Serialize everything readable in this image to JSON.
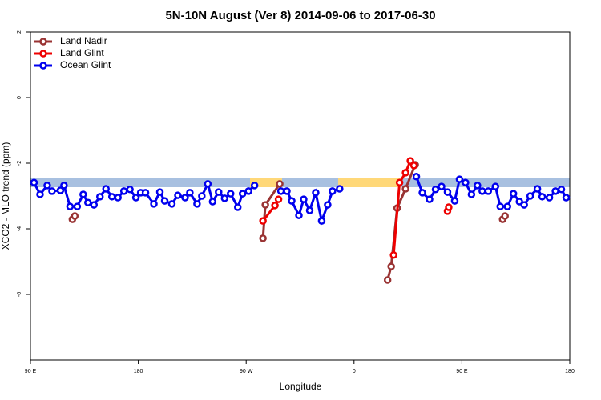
{
  "chart_data": {
    "type": "line",
    "title": "5N-10N August (Ver 8)   2014-09-06 to 2017-06-30",
    "x_label": "Longitude",
    "y_label": "XCO2 - MLO trend (ppm)",
    "xlim": [
      90,
      540
    ],
    "ylim": [
      -8,
      2
    ],
    "xticks": [
      {
        "value": 90,
        "label": "90 E"
      },
      180,
      {
        "value": 270,
        "label": "90 W"
      },
      {
        "value": 360,
        "label": "0"
      },
      {
        "value": 450,
        "label": "90 E"
      },
      {
        "value": 540,
        "label": "180"
      }
    ],
    "yticks": [
      -6,
      -4,
      -2,
      0,
      2
    ],
    "legend": "top-left",
    "series": [
      {
        "name": "Land Nadir",
        "color": "#993333",
        "x": [
          125,
          127,
          null,
          284,
          286,
          298,
          null,
          388,
          391,
          396,
          403,
          411,
          null,
          484,
          486
        ],
        "values": [
          -3.71,
          -3.61,
          null,
          -4.29,
          -3.27,
          -2.63,
          null,
          -5.56,
          -5.15,
          -3.37,
          -2.78,
          -2.05,
          null,
          -3.71,
          -3.61
        ]
      },
      {
        "name": "Land Glint",
        "color": "#ee0000",
        "x": [
          284,
          294,
          297,
          null,
          393,
          398,
          403,
          407,
          410,
          null,
          438,
          439
        ],
        "values": [
          -3.76,
          -3.29,
          -3.1,
          null,
          -4.8,
          -2.59,
          -2.29,
          -1.93,
          -2.07,
          null,
          -3.46,
          -3.34
        ]
      },
      {
        "name": "Ocean Glint",
        "color": "#0000ee",
        "x": [
          93,
          98,
          104,
          108,
          115,
          118,
          123,
          129,
          134,
          138,
          143,
          148,
          153,
          158,
          163,
          168,
          173,
          178,
          182,
          186,
          193,
          198,
          202,
          208,
          213,
          219,
          223,
          229,
          233,
          238,
          242,
          247,
          252,
          257,
          263,
          267,
          272,
          277,
          null,
          299,
          304,
          308,
          314,
          318,
          323,
          328,
          333,
          338,
          342,
          348,
          null,
          412,
          417,
          423,
          428,
          433,
          438,
          444,
          448,
          453,
          458,
          463,
          467,
          472,
          478,
          482,
          488,
          493,
          498,
          502,
          507,
          513,
          517,
          523,
          528,
          533,
          537
        ],
        "values": [
          -2.59,
          -2.95,
          -2.68,
          -2.85,
          -2.83,
          -2.68,
          -3.32,
          -3.32,
          -2.95,
          -3.2,
          -3.27,
          -3.02,
          -2.78,
          -3.02,
          -3.05,
          -2.85,
          -2.8,
          -3.05,
          -2.9,
          -2.9,
          -3.24,
          -2.88,
          -3.15,
          -3.24,
          -2.98,
          -3.05,
          -2.9,
          -3.24,
          -3.0,
          -2.63,
          -3.17,
          -2.88,
          -3.07,
          -2.93,
          -3.34,
          -2.93,
          -2.85,
          -2.68,
          null,
          -2.85,
          -2.85,
          -3.15,
          -3.59,
          -3.1,
          -3.44,
          -2.9,
          -3.76,
          -3.27,
          -2.85,
          -2.78,
          null,
          -2.41,
          -2.9,
          -3.1,
          -2.8,
          -2.71,
          -2.88,
          -3.15,
          -2.49,
          -2.59,
          -2.95,
          -2.68,
          -2.85,
          -2.85,
          -2.71,
          -3.32,
          -3.32,
          -2.93,
          -3.17,
          -3.27,
          -3.0,
          -2.78,
          -3.02,
          -3.05,
          -2.85,
          -2.8,
          -3.05
        ]
      }
    ]
  }
}
